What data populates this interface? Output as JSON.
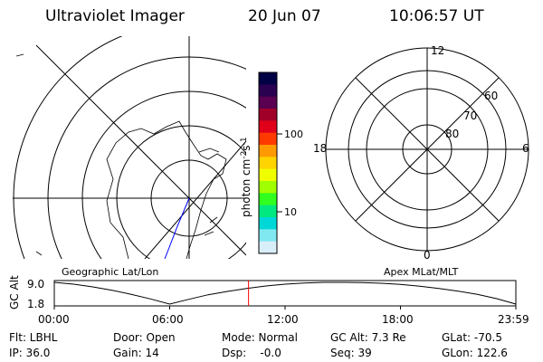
{
  "header": {
    "instrument": "Ultraviolet Imager",
    "date": "20 Jun 07",
    "time": "10:06:57 UT"
  },
  "colorbar": {
    "label": "photon cm",
    "label_exp1": "-2",
    "label_s": "s",
    "label_exp2": "-1",
    "tick_100": "100",
    "tick_10": "10",
    "colors": [
      "#000044",
      "#2a0050",
      "#5a0050",
      "#a00028",
      "#e0001a",
      "#ff3a00",
      "#ff9a00",
      "#ffd400",
      "#f0ff00",
      "#a0ff00",
      "#30ff20",
      "#00e880",
      "#00d8d8",
      "#80e8f0",
      "#d8eef8"
    ]
  },
  "left_map": {
    "caption": "Geographic Lat/Lon"
  },
  "right_map": {
    "caption": "Apex MLat/MLT",
    "mlt_top": "12",
    "mlt_bottom": "0",
    "mlt_left": "18",
    "mlt_right": "6",
    "lat_60": "60",
    "lat_70": "70",
    "lat_80": "80"
  },
  "chart_data": {
    "type": "line",
    "ylabel": "GC Alt",
    "ylim": [
      1.8,
      9.0
    ],
    "yticks": [
      "9.0",
      "1.8"
    ],
    "xticks": [
      "00:00",
      "06:00",
      "12:00",
      "18:00",
      "23:59"
    ],
    "x_hours": [
      0,
      1,
      2,
      3,
      4,
      5,
      6,
      7,
      8,
      9,
      10,
      11,
      12,
      13,
      14,
      15,
      16,
      17,
      18,
      19,
      20,
      21,
      22,
      23,
      24
    ],
    "altitude": [
      9.0,
      8.4,
      7.5,
      6.4,
      5.0,
      3.5,
      1.8,
      3.4,
      4.9,
      6.0,
      7.0,
      7.8,
      8.4,
      8.8,
      9.0,
      9.0,
      8.9,
      8.7,
      8.3,
      7.7,
      7.0,
      6.1,
      5.0,
      3.6,
      1.8
    ],
    "current_time_hours": 10.1
  },
  "footer": {
    "row1": [
      "Flt: LBHL",
      "Door: Open",
      "Mode: Normal",
      "GC Alt: 7.3 Re",
      "GLat: -70.5"
    ],
    "row2": [
      "IP: 36.0",
      "Gain: 14",
      "Dsp:    -0.0",
      "Seq: 39",
      "GLon: 122.6"
    ]
  }
}
